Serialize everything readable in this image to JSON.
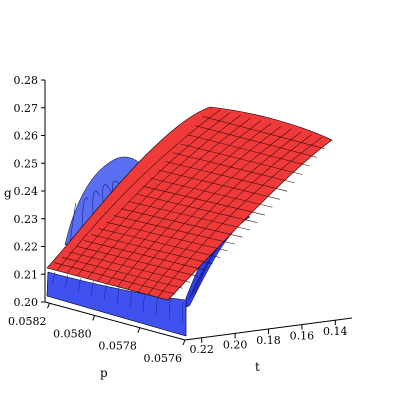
{
  "chart_data": {
    "type": "surface",
    "axes": {
      "g": {
        "label": "g",
        "range": [
          0.2,
          0.28
        ],
        "ticks": [
          "0.20",
          "0.21",
          "0.22",
          "0.23",
          "0.24",
          "0.25",
          "0.26",
          "0.27",
          "0.28"
        ]
      },
      "p": {
        "label": "p",
        "range": [
          0.0576,
          0.05822
        ],
        "ticks": [
          "0.0582",
          "0.0580",
          "0.0578",
          "0.0576"
        ]
      },
      "t": {
        "label": "t",
        "range": [
          0.13,
          0.23
        ],
        "ticks": [
          "0.22",
          "0.20",
          "0.18",
          "0.16",
          "0.14"
        ]
      }
    },
    "series": [
      {
        "color": "#2f3ff0",
        "shading": "blue",
        "g_min": 0.2,
        "g_max": 0.25,
        "peak_p": 0.05785
      },
      {
        "color": "#f03a3a",
        "shading": "red",
        "g_at_low_t_high_p": 0.211,
        "g_at_high_t_high_p": 0.271,
        "g_at_low_t_low_p": 0.224,
        "g_at_high_t_low_p": 0.26
      }
    ],
    "grid": false,
    "legend": "none"
  }
}
